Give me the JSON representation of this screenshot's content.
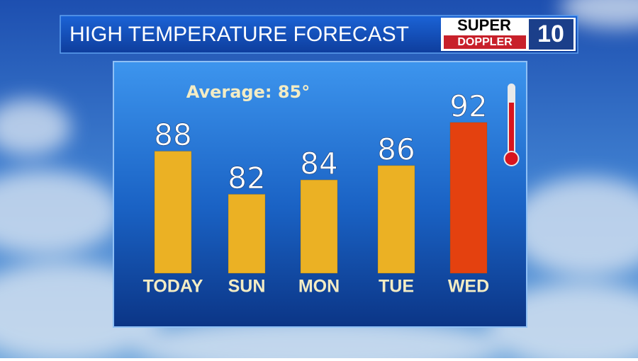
{
  "chart_data": {
    "type": "bar",
    "title": "HIGH TEMPERATURE FORECAST",
    "logo": {
      "line1": "SUPER",
      "line2": "DOPPLER",
      "number": "10"
    },
    "annotation": "Average: 85°",
    "categories": [
      "TODAY",
      "SUN",
      "MON",
      "TUE",
      "WED"
    ],
    "values": [
      88,
      82,
      84,
      86,
      92
    ],
    "colors": [
      "#ebb124",
      "#ebb124",
      "#ebb124",
      "#ebb124",
      "#e4410f"
    ],
    "ylim": [
      71,
      92
    ]
  }
}
